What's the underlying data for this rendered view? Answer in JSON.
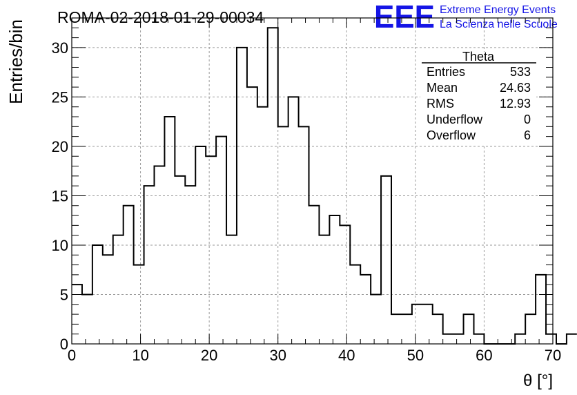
{
  "header": {
    "run_title": "ROMA-02-2018-01-29-00034",
    "logo_text": "EEE",
    "logo_line1": "Extreme Energy Events",
    "logo_line2": "La Scienza nelle Scuole",
    "logo_color": "#1515e6"
  },
  "stats_box": {
    "title": "Theta",
    "rows": [
      {
        "label": "Entries",
        "value": "533"
      },
      {
        "label": "Mean",
        "value": "24.63"
      },
      {
        "label": "RMS",
        "value": "12.93"
      },
      {
        "label": "Underflow",
        "value": "0"
      },
      {
        "label": "Overflow",
        "value": "6"
      }
    ]
  },
  "chart_data": {
    "type": "histogram",
    "title": "ROMA-02-2018-01-29-00034",
    "xlabel": "θ [°]",
    "ylabel": "Entries/bin",
    "xlim": [
      0,
      70
    ],
    "ylim": [
      0,
      33
    ],
    "grid": true,
    "bin_edges_start": 0,
    "bin_width": 1.5,
    "values": [
      6,
      5,
      10,
      9,
      11,
      14,
      8,
      16,
      18,
      23,
      17,
      16,
      20,
      19,
      21,
      11,
      30,
      26,
      24,
      32,
      22,
      25,
      22,
      14,
      11,
      13,
      12,
      8,
      7,
      5,
      17,
      3,
      3,
      4,
      4,
      3,
      1,
      1,
      3,
      1,
      0,
      0,
      0,
      1,
      3,
      7,
      1,
      0,
      1
    ],
    "x_ticks": [
      0,
      10,
      20,
      30,
      40,
      50,
      60,
      70
    ],
    "x_tick_labels": [
      "0",
      "10",
      "20",
      "30",
      "40",
      "50",
      "60",
      "70"
    ],
    "y_ticks": [
      0,
      5,
      10,
      15,
      20,
      25,
      30
    ],
    "y_tick_labels": [
      "0",
      "5",
      "10",
      "15",
      "20",
      "25",
      "30"
    ]
  }
}
